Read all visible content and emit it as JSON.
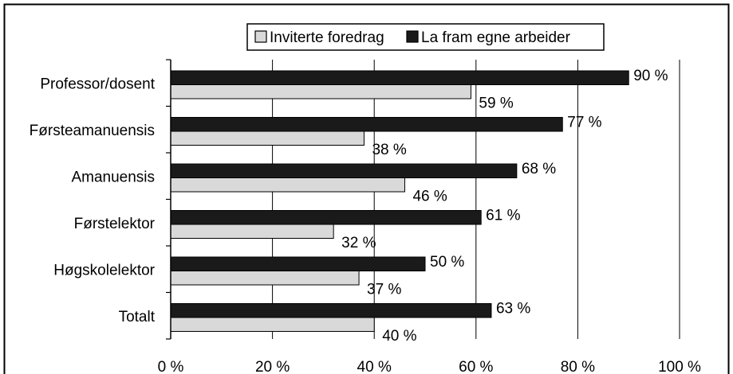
{
  "chart_data": {
    "type": "bar",
    "orientation": "horizontal",
    "categories": [
      "Professor/dosent",
      "Førsteamanuensis",
      "Amanuensis",
      "Førstelektor",
      "Høgskolelektor",
      "Totalt"
    ],
    "series": [
      {
        "name": "Inviterte foredrag",
        "values": [
          59,
          38,
          46,
          32,
          37,
          40
        ],
        "labels": [
          "59 %",
          "38 %",
          "46 %",
          "32 %",
          "37 %",
          "40 %"
        ],
        "color": "#d9d9d9"
      },
      {
        "name": "La fram egne arbeider",
        "values": [
          90,
          77,
          68,
          61,
          50,
          63
        ],
        "labels": [
          "90 %",
          "77 %",
          "68 %",
          "61 %",
          "50 %",
          "63 %"
        ],
        "color": "#1a1a1a"
      }
    ],
    "xlim": [
      0,
      100
    ],
    "xticks": [
      0,
      20,
      40,
      60,
      80,
      100
    ],
    "xtick_labels": [
      "0 %",
      "20 %",
      "40 %",
      "60 %",
      "80 %",
      "100 %"
    ],
    "grid": true,
    "legend_position": "top"
  }
}
